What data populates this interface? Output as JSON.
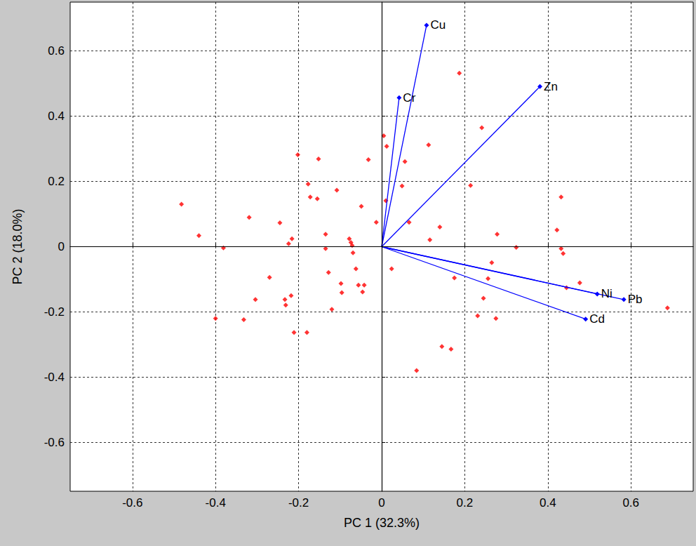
{
  "chart_data": {
    "type": "biplot",
    "xlabel": "PC 1 (32.3%)",
    "ylabel": "PC 2 (18.0%)",
    "xlim": [
      -0.75,
      0.75
    ],
    "ylim": [
      -0.75,
      0.75
    ],
    "xticks": [
      -0.6,
      -0.4,
      -0.2,
      0,
      0.2,
      0.4,
      0.6
    ],
    "yticks": [
      -0.6,
      -0.4,
      -0.2,
      0,
      0.2,
      0.4,
      0.6
    ],
    "grid": true,
    "series": [
      {
        "type": "scatter",
        "color": "#ff0000",
        "marker": "diamond",
        "x": [
          -0.482,
          -0.44,
          -0.381,
          -0.319,
          -0.4,
          -0.332,
          -0.304,
          -0.27,
          -0.245,
          -0.233,
          -0.231,
          -0.224,
          -0.216,
          -0.218,
          -0.211,
          -0.202,
          -0.18,
          -0.177,
          -0.172,
          -0.155,
          -0.152,
          -0.135,
          -0.135,
          -0.128,
          -0.12,
          -0.108,
          -0.098,
          -0.096,
          -0.078,
          -0.074,
          -0.071,
          -0.069,
          -0.062,
          -0.056,
          -0.049,
          -0.046,
          -0.042,
          -0.032,
          -0.013,
          0.005,
          0.012,
          0.01,
          0.024,
          0.049,
          0.056,
          0.066,
          0.084,
          0.113,
          0.116,
          0.14,
          0.145,
          0.167,
          0.175,
          0.187,
          0.214,
          0.231,
          0.241,
          0.245,
          0.256,
          0.265,
          0.275,
          0.278,
          0.324,
          0.422,
          0.432,
          0.432,
          0.437,
          0.445,
          0.477,
          0.688
        ],
        "y": [
          0.13,
          0.034,
          -0.004,
          0.09,
          -0.22,
          -0.224,
          -0.162,
          -0.094,
          0.073,
          -0.162,
          -0.179,
          0.009,
          0.024,
          -0.15,
          -0.263,
          0.282,
          -0.263,
          0.192,
          0.152,
          0.147,
          0.269,
          0.038,
          -0.006,
          -0.079,
          -0.192,
          0.173,
          -0.113,
          -0.141,
          0.024,
          0.013,
          0.004,
          -0.019,
          -0.068,
          -0.118,
          0.124,
          -0.139,
          -0.118,
          0.267,
          0.075,
          0.34,
          0.308,
          0.141,
          -0.068,
          0.186,
          0.261,
          0.075,
          -0.38,
          0.312,
          0.021,
          0.06,
          -0.306,
          -0.314,
          -0.096,
          0.532,
          0.188,
          -0.212,
          0.365,
          -0.158,
          -0.098,
          -0.049,
          -0.22,
          0.038,
          -0.002,
          0.051,
          0.152,
          -0.006,
          -0.021,
          -0.126,
          -0.111,
          -0.188
        ]
      },
      {
        "type": "vectors",
        "color": "#0000ff",
        "marker": "diamond",
        "labels": [
          "Cu",
          "Cr",
          "Zn",
          "Ni",
          "Pb",
          "Cd"
        ],
        "x": [
          0.108,
          0.042,
          0.381,
          0.519,
          0.583,
          0.491
        ],
        "y": [
          0.679,
          0.457,
          0.491,
          -0.145,
          -0.162,
          -0.222
        ]
      }
    ]
  }
}
